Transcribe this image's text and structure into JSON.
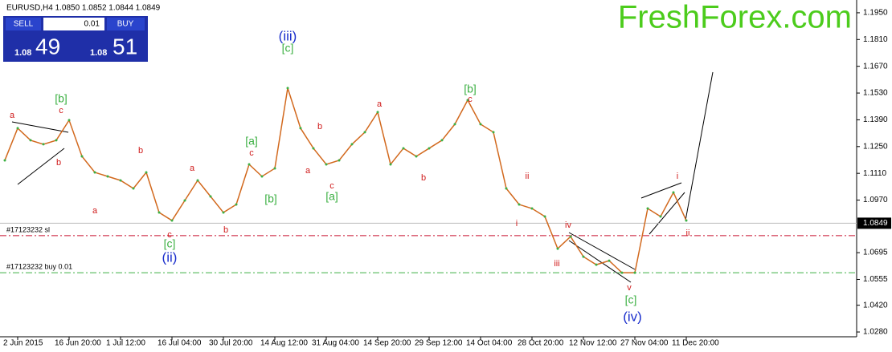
{
  "header": {
    "symbol_info": "EURUSD,H4  1.0850 1.0852 1.0844 1.0849"
  },
  "trade_panel": {
    "sell": "SELL",
    "buy": "BUY",
    "lot": "0.01",
    "sell_small": "1.08",
    "sell_big": "49",
    "buy_small": "1.08",
    "buy_big": "51"
  },
  "watermark": "FreshForex.com",
  "chart_data": {
    "type": "line",
    "color": "#d2691e",
    "categories": [
      null,
      "2 Jun 2015",
      null,
      null,
      null,
      "16 Jun 20:00",
      null,
      null,
      null,
      "1 Jul 12:00",
      null,
      null,
      null,
      "16 Jul 04:00",
      null,
      null,
      null,
      "30 Jul 20:00",
      null,
      null,
      null,
      "14 Aug 12:00",
      null,
      null,
      null,
      "31 Aug 04:00",
      null,
      null,
      null,
      "14 Sep 20:00",
      null,
      null,
      null,
      "29 Sep 12:00",
      null,
      null,
      null,
      "14 Oct 04:00",
      null,
      null,
      null,
      "28 Oct 20:00",
      null,
      null,
      null,
      "12 Nov 12:00",
      null,
      null,
      null,
      "27 Nov 04:00",
      null,
      null,
      null,
      "11 Dec 20:00"
    ],
    "values": [
      1.1178,
      1.1346,
      1.1283,
      1.1262,
      1.1283,
      1.1388,
      1.1199,
      1.1115,
      1.1094,
      1.1073,
      1.1031,
      1.1115,
      1.0905,
      1.0863,
      1.0968,
      1.1073,
      1.0989,
      1.0905,
      1.0947,
      1.1157,
      1.1094,
      1.1136,
      1.1556,
      1.1346,
      1.1241,
      1.1157,
      1.1178,
      1.1262,
      1.1325,
      1.143,
      1.1157,
      1.1241,
      1.1199,
      1.1241,
      1.1283,
      1.1367,
      1.1493,
      1.1367,
      1.1325,
      1.1031,
      1.0947,
      1.0926,
      1.0884,
      1.0716,
      1.0779,
      1.0674,
      1.0632,
      1.0653,
      1.059,
      1.059,
      1.0926,
      1.0884,
      1.101,
      1.0863
    ],
    "ylim": [
      1.0255,
      1.2
    ],
    "yticks": [
      {
        "value": 1.195,
        "label": "1.1950"
      },
      {
        "value": 1.181,
        "label": "1.1810"
      },
      {
        "value": 1.167,
        "label": "1.1670"
      },
      {
        "value": 1.153,
        "label": "1.1530"
      },
      {
        "value": 1.139,
        "label": "1.1390"
      },
      {
        "value": 1.125,
        "label": "1.1250"
      },
      {
        "value": 1.111,
        "label": "1.1110"
      },
      {
        "value": 1.097,
        "label": "1.0970"
      },
      {
        "value": 1.0695,
        "label": "1.0695"
      },
      {
        "value": 1.0555,
        "label": "1.0555"
      },
      {
        "value": 1.042,
        "label": "1.0420"
      },
      {
        "value": 1.028,
        "label": "1.0280"
      }
    ],
    "current_price": {
      "value": 1.0849,
      "label": "1.0849"
    },
    "levels": [
      {
        "label": "#17123232 sl",
        "value": 1.0784,
        "color": "#c8102e"
      },
      {
        "label": "#17123232 buy 0.01",
        "value": 1.059,
        "color": "#3cb043"
      }
    ],
    "annotations": [
      {
        "text": "a",
        "color": "#d01c1c"
      },
      {
        "text": "[b]",
        "color": "#3cb043"
      },
      {
        "text": "c",
        "color": "#d01c1c"
      },
      {
        "text": "b",
        "color": "#d01c1c"
      },
      {
        "text": "b",
        "color": "#d01c1c"
      },
      {
        "text": "a",
        "color": "#d01c1c"
      },
      {
        "text": "a",
        "color": "#d01c1c"
      },
      {
        "text": "c",
        "color": "#d01c1c"
      },
      {
        "text": "[c]",
        "color": "#3cb043"
      },
      {
        "text": "(ii)",
        "color": "#1a2ecc"
      },
      {
        "text": "b",
        "color": "#d01c1c"
      },
      {
        "text": "c",
        "color": "#d01c1c"
      },
      {
        "text": "[a]",
        "color": "#3cb043"
      },
      {
        "text": "[b]",
        "color": "#3cb043"
      },
      {
        "text": "(iii)",
        "color": "#1a2ecc"
      },
      {
        "text": "[c]",
        "color": "#3cb043"
      },
      {
        "text": "b",
        "color": "#d01c1c"
      },
      {
        "text": "a",
        "color": "#d01c1c"
      },
      {
        "text": "c",
        "color": "#d01c1c"
      },
      {
        "text": "[a]",
        "color": "#3cb043"
      },
      {
        "text": "a",
        "color": "#d01c1c"
      },
      {
        "text": "b",
        "color": "#d01c1c"
      },
      {
        "text": "[b]",
        "color": "#3cb043"
      },
      {
        "text": "c",
        "color": "#d01c1c"
      },
      {
        "text": "ii",
        "color": "#d01c1c"
      },
      {
        "text": "i",
        "color": "#d01c1c"
      },
      {
        "text": "iv",
        "color": "#d01c1c"
      },
      {
        "text": "iii",
        "color": "#d01c1c"
      },
      {
        "text": "v",
        "color": "#d01c1c"
      },
      {
        "text": "[c]",
        "color": "#3cb043"
      },
      {
        "text": "(iv)",
        "color": "#1a2ecc"
      },
      {
        "text": "i",
        "color": "#d01c1c"
      },
      {
        "text": "ii",
        "color": "#d01c1c"
      }
    ]
  }
}
